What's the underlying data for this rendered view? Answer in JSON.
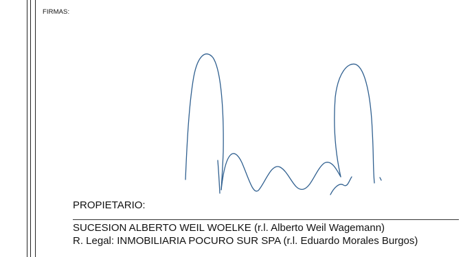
{
  "section_label": "FIRMAS:",
  "signer": {
    "role": "PROPIETARIO:",
    "owner": "SUCESION ALBERTO WEIL WOELKE (r.l. Alberto Weil Wagemann)",
    "legal_representative": "R. Legal: INMOBILIARIA POCURO SUR SPA (r.l. Eduardo Morales Burgos)"
  },
  "colors": {
    "ink_signature": "#2f5f8f",
    "text": "#111111",
    "rules": "#222222"
  }
}
